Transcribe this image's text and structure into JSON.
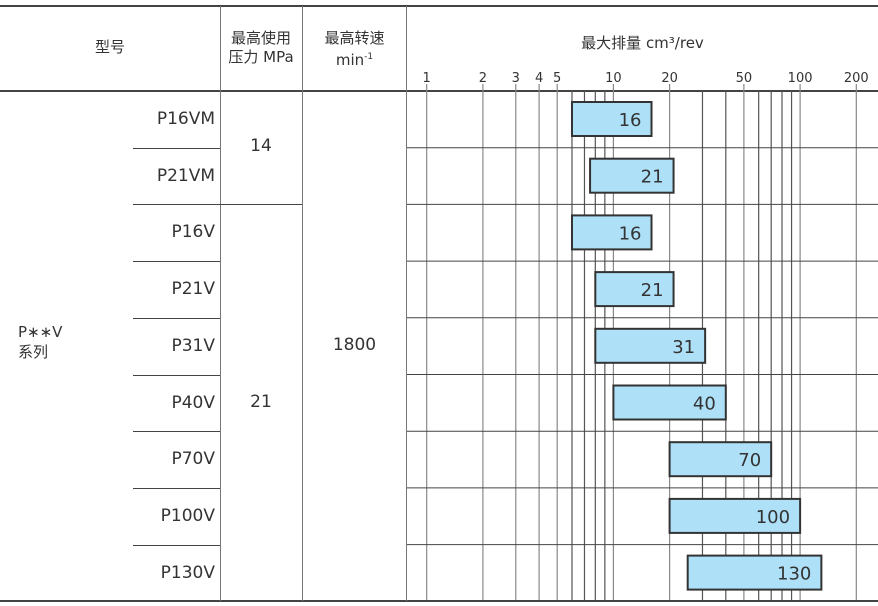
{
  "header": {
    "model": "型号",
    "pressure_line1": "最高使用",
    "pressure_line2": "压力 MPa",
    "speed_line1": "最高转速",
    "speed_line2": "min",
    "speed_sup": "-1",
    "displacement": "最大排量 cm³/rev"
  },
  "group": {
    "line1": "P∗∗V",
    "line2": "系列"
  },
  "models": [
    "P16VM",
    "P21VM",
    "P16V",
    "P21V",
    "P31V",
    "P40V",
    "P70V",
    "P100V",
    "P130V"
  ],
  "pressure": [
    {
      "value": "14"
    },
    {
      "value": "21"
    }
  ],
  "speed": "1800",
  "chart_data": {
    "type": "bar",
    "orientation": "horizontal-range",
    "x_scale": "log",
    "xlim": [
      0.8,
      230
    ],
    "tick_labels": [
      "1",
      "2",
      "3",
      "4",
      "5",
      "10",
      "20",
      "50",
      "100",
      "200"
    ],
    "tick_values": [
      1,
      2,
      3,
      4,
      5,
      10,
      20,
      50,
      100,
      200
    ],
    "gridlines": [
      1,
      2,
      3,
      4,
      5,
      6,
      7,
      8,
      9,
      10,
      20,
      30,
      40,
      50,
      60,
      70,
      80,
      90,
      100,
      200
    ],
    "categories": [
      "P16VM",
      "P21VM",
      "P16V",
      "P21V",
      "P31V",
      "P40V",
      "P70V",
      "P100V",
      "P130V"
    ],
    "ranges": [
      [
        6,
        16
      ],
      [
        7.5,
        21
      ],
      [
        6,
        16
      ],
      [
        8,
        21
      ],
      [
        8,
        31
      ],
      [
        10,
        40
      ],
      [
        20,
        70
      ],
      [
        20,
        100
      ],
      [
        25,
        130
      ]
    ],
    "labels": [
      "16",
      "21",
      "16",
      "21",
      "31",
      "40",
      "70",
      "100",
      "130"
    ],
    "bar_color": "#aee0f8",
    "bar_stroke": "#333333"
  }
}
